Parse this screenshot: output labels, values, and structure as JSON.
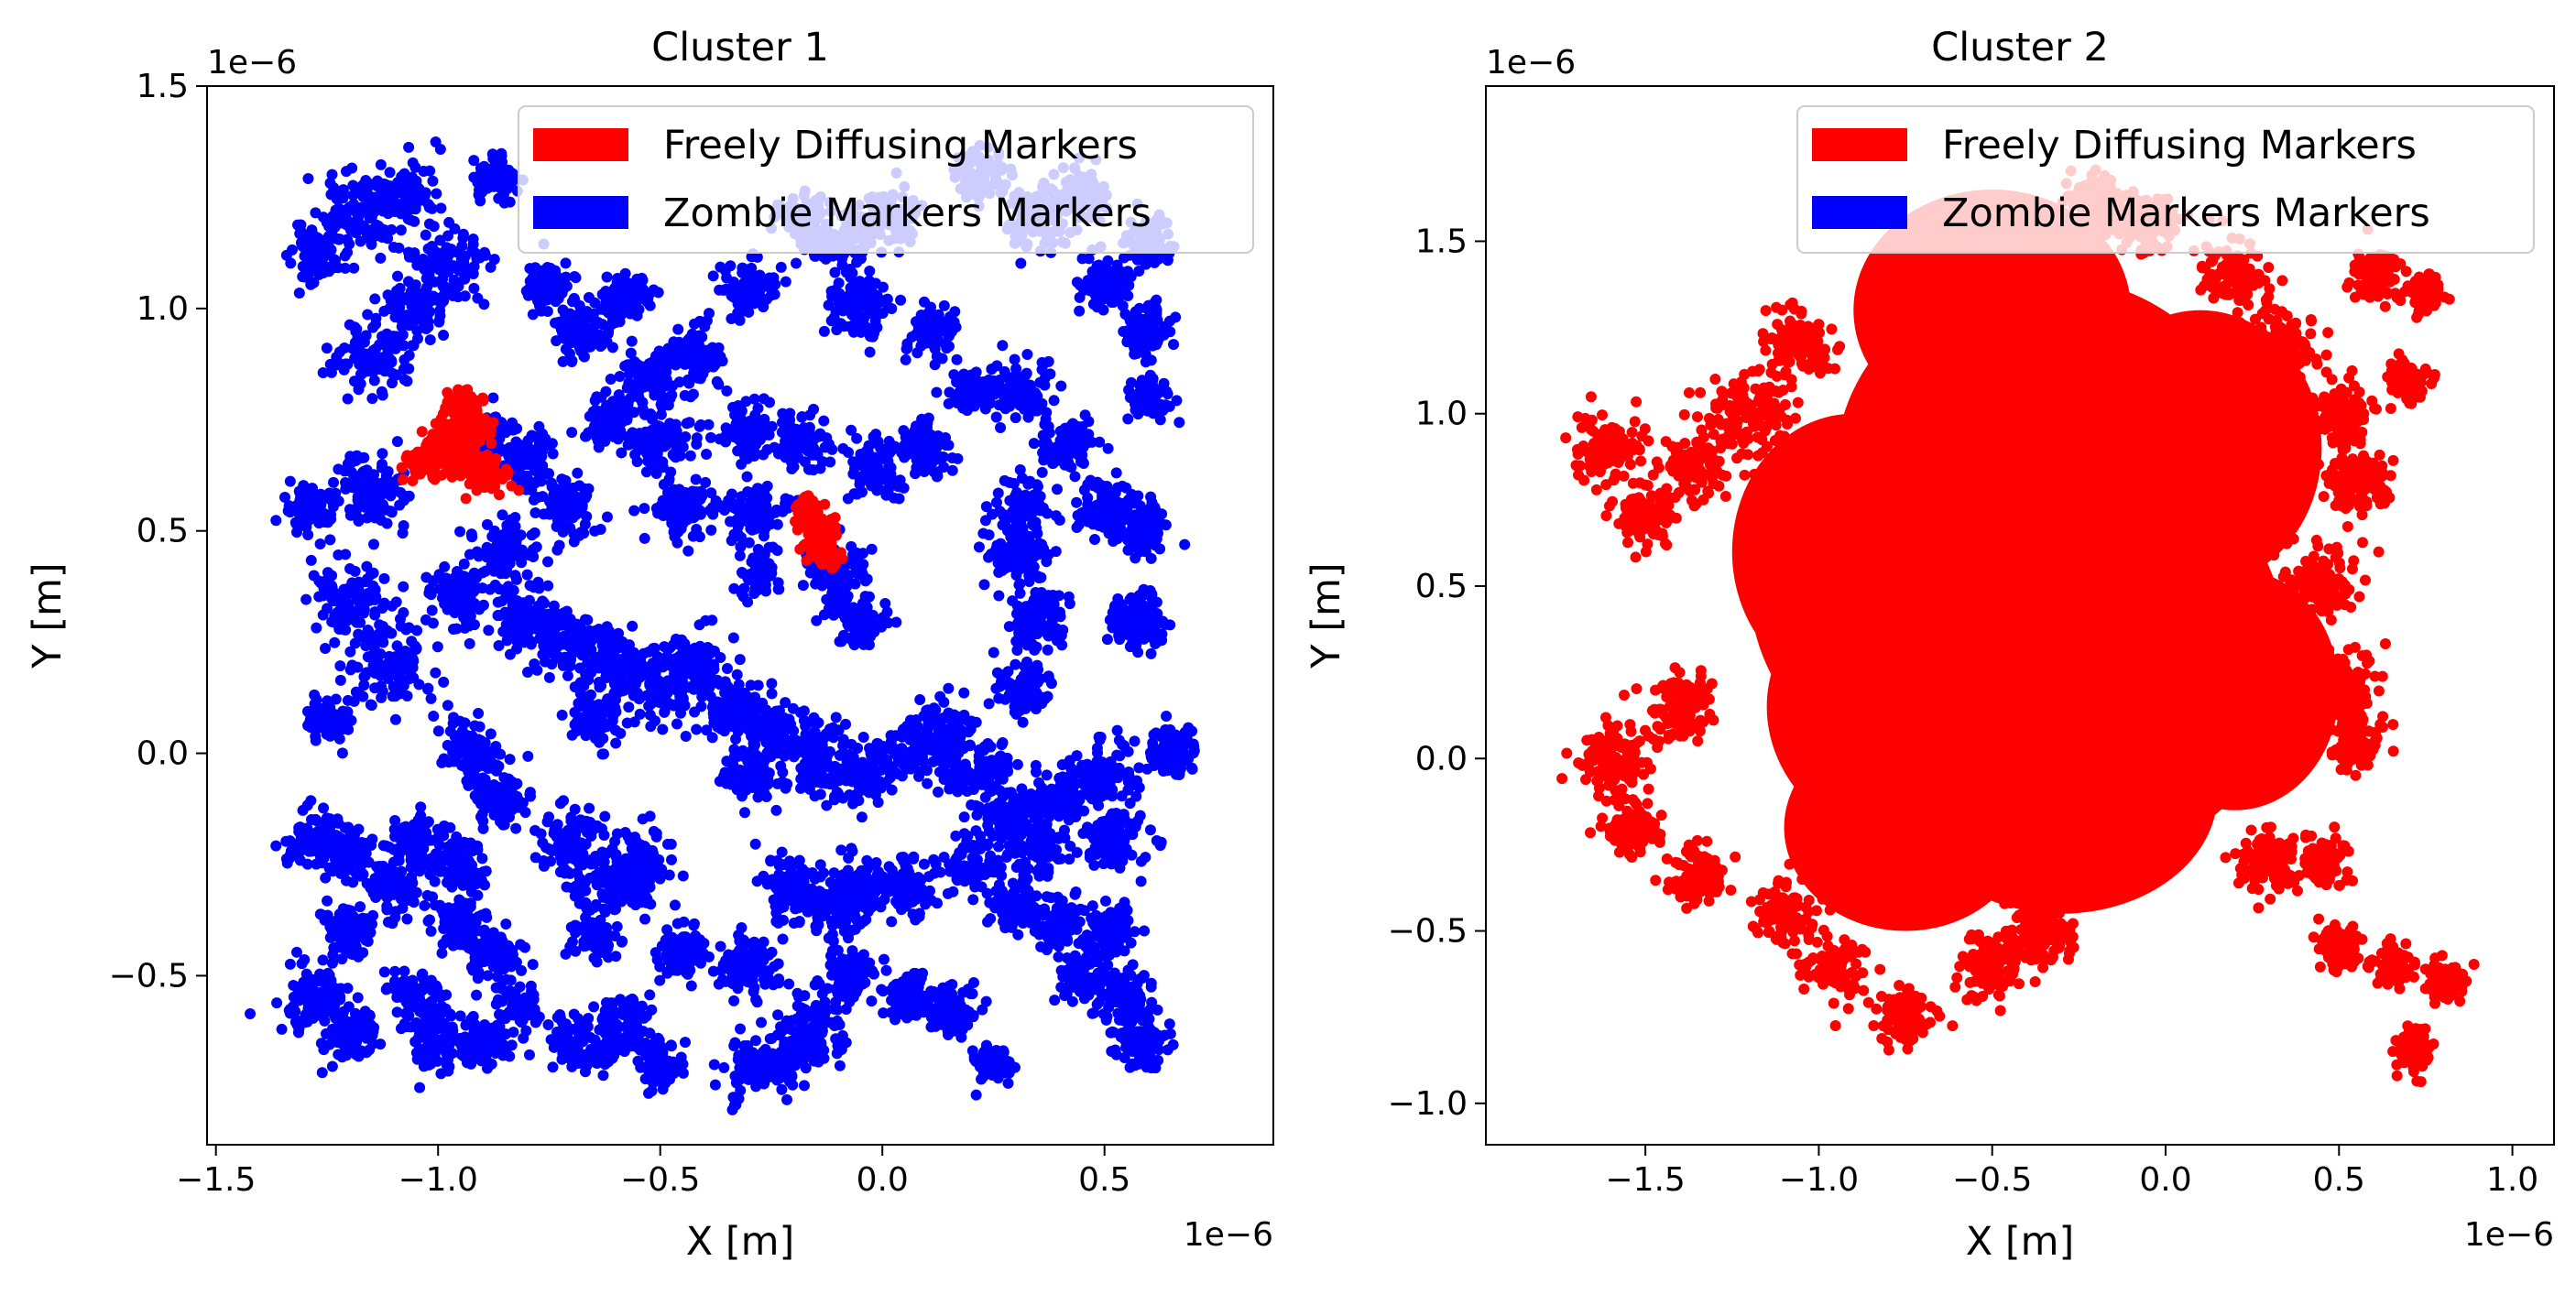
{
  "chart_data": [
    {
      "type": "scatter",
      "title": "Cluster 1",
      "xlabel": "X [m]",
      "ylabel": "Y [m]",
      "x_offset_label": "1e−6",
      "y_offset_label": "1e−6",
      "xlim": [
        -1.52,
        0.88
      ],
      "ylim": [
        -0.88,
        1.5
      ],
      "x_ticks": [
        -1.5,
        -1.0,
        -0.5,
        0.0,
        0.5
      ],
      "x_tick_labels": [
        "−1.5",
        "−1.0",
        "−0.5",
        "0.0",
        "0.5"
      ],
      "y_ticks": [
        -0.5,
        0.0,
        0.5,
        1.0,
        1.5
      ],
      "y_tick_labels": [
        "−0.5",
        "0.0",
        "0.5",
        "1.0",
        "1.5"
      ],
      "legend": {
        "placement": "upper right",
        "entries": [
          {
            "label": "Freely Diffusing Markers",
            "color": "#ff0000"
          },
          {
            "label": "Zombie Markers Markers",
            "color": "#0000ff"
          }
        ]
      },
      "series": [
        {
          "name": "Zombie Markers Markers",
          "color": "#0000ff",
          "seed": 11,
          "clusters": [
            [
              -1.27,
              1.12,
              0.05
            ],
            [
              -1.18,
              1.22,
              0.07
            ],
            [
              -1.08,
              1.25,
              0.06
            ],
            [
              -0.98,
              1.1,
              0.07
            ],
            [
              -0.87,
              1.3,
              0.04
            ],
            [
              -0.75,
              1.05,
              0.05
            ],
            [
              -0.68,
              0.95,
              0.05
            ],
            [
              -0.58,
              1.02,
              0.05
            ],
            [
              -0.52,
              0.85,
              0.06
            ],
            [
              -0.42,
              0.9,
              0.05
            ],
            [
              -0.3,
              1.05,
              0.05
            ],
            [
              -0.18,
              1.2,
              0.05
            ],
            [
              -0.1,
              1.15,
              0.06
            ],
            [
              -0.05,
              1.0,
              0.06
            ],
            [
              0.02,
              1.2,
              0.06
            ],
            [
              0.12,
              0.95,
              0.05
            ],
            [
              0.22,
              1.3,
              0.05
            ],
            [
              0.35,
              1.2,
              0.06
            ],
            [
              0.3,
              0.82,
              0.06
            ],
            [
              0.2,
              0.82,
              0.04
            ],
            [
              0.45,
              1.25,
              0.05
            ],
            [
              0.5,
              1.05,
              0.05
            ],
            [
              0.6,
              1.15,
              0.05
            ],
            [
              0.6,
              0.95,
              0.05
            ],
            [
              0.6,
              0.8,
              0.04
            ],
            [
              -1.15,
              0.9,
              0.07
            ],
            [
              -1.05,
              1.0,
              0.06
            ],
            [
              -0.9,
              0.7,
              0.06
            ],
            [
              -1.15,
              0.6,
              0.07
            ],
            [
              -1.28,
              0.55,
              0.05
            ],
            [
              -0.8,
              0.65,
              0.06
            ],
            [
              -0.7,
              0.55,
              0.05
            ],
            [
              -0.62,
              0.75,
              0.05
            ],
            [
              -0.5,
              0.7,
              0.06
            ],
            [
              -0.45,
              0.55,
              0.06
            ],
            [
              -0.3,
              0.72,
              0.05
            ],
            [
              -0.28,
              0.55,
              0.06
            ],
            [
              -0.18,
              0.7,
              0.05
            ],
            [
              -0.28,
              0.4,
              0.04
            ],
            [
              -0.02,
              0.65,
              0.06
            ],
            [
              0.1,
              0.68,
              0.05
            ],
            [
              0.32,
              0.55,
              0.05
            ],
            [
              0.42,
              0.7,
              0.05
            ],
            [
              0.5,
              0.55,
              0.05
            ],
            [
              0.58,
              0.5,
              0.05
            ],
            [
              0.58,
              0.3,
              0.06
            ],
            [
              0.3,
              0.45,
              0.06
            ],
            [
              0.35,
              0.3,
              0.06
            ],
            [
              0.32,
              0.15,
              0.05
            ],
            [
              -0.1,
              0.4,
              0.06
            ],
            [
              -0.05,
              0.3,
              0.05
            ],
            [
              -1.2,
              0.35,
              0.07
            ],
            [
              -1.1,
              0.2,
              0.08
            ],
            [
              -0.95,
              0.35,
              0.06
            ],
            [
              -0.85,
              0.45,
              0.06
            ],
            [
              -0.8,
              0.3,
              0.06
            ],
            [
              -0.7,
              0.25,
              0.06
            ],
            [
              -0.6,
              0.2,
              0.06
            ],
            [
              -0.5,
              0.15,
              0.07
            ],
            [
              -0.42,
              0.2,
              0.06
            ],
            [
              -0.35,
              0.1,
              0.06
            ],
            [
              -0.25,
              0.05,
              0.06
            ],
            [
              -1.25,
              0.07,
              0.04
            ],
            [
              -0.92,
              0.0,
              0.06
            ],
            [
              -0.85,
              -0.1,
              0.05
            ],
            [
              -0.65,
              0.08,
              0.05
            ],
            [
              -0.15,
              0.0,
              0.07
            ],
            [
              -0.05,
              -0.05,
              0.06
            ],
            [
              0.05,
              0.0,
              0.06
            ],
            [
              0.15,
              0.05,
              0.06
            ],
            [
              0.22,
              -0.05,
              0.07
            ],
            [
              0.3,
              -0.15,
              0.06
            ],
            [
              0.4,
              -0.1,
              0.05
            ],
            [
              0.5,
              -0.05,
              0.07
            ],
            [
              0.52,
              -0.2,
              0.06
            ],
            [
              0.65,
              0.0,
              0.05
            ],
            [
              -0.3,
              -0.05,
              0.05
            ],
            [
              -1.28,
              -0.2,
              0.06
            ],
            [
              -1.2,
              -0.22,
              0.05
            ],
            [
              -1.05,
              -0.2,
              0.05
            ],
            [
              -0.95,
              -0.25,
              0.05
            ],
            [
              -0.7,
              -0.2,
              0.06
            ],
            [
              -0.62,
              -0.3,
              0.07
            ],
            [
              -0.55,
              -0.25,
              0.06
            ],
            [
              -0.2,
              -0.3,
              0.06
            ],
            [
              -0.1,
              -0.35,
              0.06
            ],
            [
              -0.05,
              -0.3,
              0.05
            ],
            [
              0.05,
              -0.3,
              0.05
            ],
            [
              0.2,
              -0.25,
              0.05
            ],
            [
              0.35,
              -0.22,
              0.05
            ],
            [
              -1.2,
              -0.4,
              0.05
            ],
            [
              -1.1,
              -0.3,
              0.05
            ],
            [
              -0.95,
              -0.38,
              0.05
            ],
            [
              -0.88,
              -0.45,
              0.05
            ],
            [
              -0.65,
              -0.42,
              0.04
            ],
            [
              -0.45,
              -0.45,
              0.05
            ],
            [
              -0.3,
              -0.48,
              0.06
            ],
            [
              0.3,
              -0.35,
              0.05
            ],
            [
              0.4,
              -0.38,
              0.05
            ],
            [
              0.52,
              -0.4,
              0.04
            ],
            [
              -1.28,
              -0.55,
              0.06
            ],
            [
              -1.2,
              -0.62,
              0.06
            ],
            [
              -1.05,
              -0.55,
              0.06
            ],
            [
              -1.0,
              -0.65,
              0.05
            ],
            [
              -0.9,
              -0.65,
              0.05
            ],
            [
              -0.82,
              -0.57,
              0.04
            ],
            [
              -0.68,
              -0.65,
              0.06
            ],
            [
              -0.58,
              -0.62,
              0.06
            ],
            [
              -0.5,
              -0.7,
              0.04
            ],
            [
              -0.3,
              -0.7,
              0.05
            ],
            [
              -0.2,
              -0.68,
              0.05
            ],
            [
              -0.15,
              -0.62,
              0.06
            ],
            [
              -0.08,
              -0.5,
              0.05
            ],
            [
              0.05,
              -0.55,
              0.05
            ],
            [
              0.15,
              -0.58,
              0.05
            ],
            [
              0.25,
              -0.7,
              0.04
            ],
            [
              0.45,
              -0.5,
              0.05
            ],
            [
              0.55,
              -0.55,
              0.05
            ],
            [
              0.58,
              -0.65,
              0.05
            ]
          ]
        },
        {
          "name": "Freely Diffusing Markers",
          "color": "#ff0000",
          "seed": 23,
          "clusters": [
            [
              -0.98,
              0.68,
              0.05
            ],
            [
              -0.93,
              0.72,
              0.04
            ],
            [
              -0.9,
              0.63,
              0.04
            ],
            [
              -1.03,
              0.65,
              0.03
            ],
            [
              -0.95,
              0.78,
              0.03
            ],
            [
              -0.15,
              0.5,
              0.03
            ],
            [
              -0.13,
              0.45,
              0.025
            ],
            [
              -0.17,
              0.55,
              0.02
            ]
          ]
        }
      ]
    },
    {
      "type": "scatter",
      "title": "Cluster 2",
      "xlabel": "X [m]",
      "ylabel": "Y [m]",
      "x_offset_label": "1e−6",
      "y_offset_label": "1e−6",
      "xlim": [
        -1.96,
        1.12
      ],
      "ylim": [
        -1.12,
        1.95
      ],
      "x_ticks": [
        -1.5,
        -1.0,
        -0.5,
        0.0,
        0.5,
        1.0
      ],
      "x_tick_labels": [
        "−1.5",
        "−1.0",
        "−0.5",
        "0.0",
        "0.5",
        "1.0"
      ],
      "y_ticks": [
        -1.0,
        -0.5,
        0.0,
        0.5,
        1.0,
        1.5
      ],
      "y_tick_labels": [
        "−1.0",
        "−0.5",
        "0.0",
        "0.5",
        "1.0",
        "1.5"
      ],
      "legend": {
        "placement": "upper right",
        "entries": [
          {
            "label": "Freely Diffusing Markers",
            "color": "#ff0000"
          },
          {
            "label": "Zombie Markers Markers",
            "color": "#0000ff"
          }
        ]
      },
      "series": [
        {
          "name": "Freely Diffusing Markers",
          "color": "#ff0000",
          "seed": 37,
          "blobs": [
            [
              -0.5,
              0.5,
              0.7,
              0.62
            ],
            [
              -0.35,
              0.85,
              0.6,
              0.55
            ],
            [
              -0.6,
              0.15,
              0.55,
              0.45
            ],
            [
              -0.9,
              0.6,
              0.35,
              0.4
            ],
            [
              -0.1,
              0.3,
              0.45,
              0.55
            ],
            [
              -0.3,
              -0.1,
              0.45,
              0.35
            ],
            [
              -0.75,
              -0.2,
              0.35,
              0.3
            ],
            [
              0.1,
              0.9,
              0.35,
              0.4
            ],
            [
              -0.5,
              1.3,
              0.4,
              0.35
            ],
            [
              0.2,
              0.2,
              0.3,
              0.35
            ]
          ],
          "clusters": [
            [
              -1.6,
              0.9,
              0.08
            ],
            [
              -1.5,
              0.7,
              0.07
            ],
            [
              -1.35,
              0.85,
              0.08
            ],
            [
              -1.2,
              1.0,
              0.1
            ],
            [
              -1.05,
              1.2,
              0.08
            ],
            [
              -1.6,
              0.0,
              0.09
            ],
            [
              -1.55,
              -0.2,
              0.07
            ],
            [
              -1.4,
              0.15,
              0.08
            ],
            [
              -1.35,
              -0.35,
              0.07
            ],
            [
              -1.1,
              -0.45,
              0.08
            ],
            [
              -0.95,
              -0.6,
              0.08
            ],
            [
              -0.75,
              -0.75,
              0.07
            ],
            [
              -0.5,
              -0.6,
              0.08
            ],
            [
              -0.35,
              -0.5,
              0.08
            ],
            [
              -0.2,
              1.6,
              0.08
            ],
            [
              -0.05,
              1.55,
              0.07
            ],
            [
              0.2,
              1.4,
              0.08
            ],
            [
              0.35,
              1.2,
              0.08
            ],
            [
              0.5,
              1.0,
              0.08
            ],
            [
              0.55,
              0.8,
              0.08
            ],
            [
              0.45,
              0.5,
              0.09
            ],
            [
              0.5,
              0.2,
              0.09
            ],
            [
              0.55,
              0.05,
              0.07
            ],
            [
              0.3,
              -0.3,
              0.07
            ],
            [
              0.45,
              -0.3,
              0.06
            ],
            [
              0.5,
              -0.55,
              0.06
            ],
            [
              0.65,
              -0.6,
              0.05
            ],
            [
              0.72,
              -0.85,
              0.05
            ],
            [
              0.8,
              -0.65,
              0.05
            ],
            [
              0.6,
              1.4,
              0.06
            ],
            [
              0.75,
              1.35,
              0.05
            ],
            [
              0.7,
              1.1,
              0.05
            ]
          ]
        }
      ]
    }
  ]
}
